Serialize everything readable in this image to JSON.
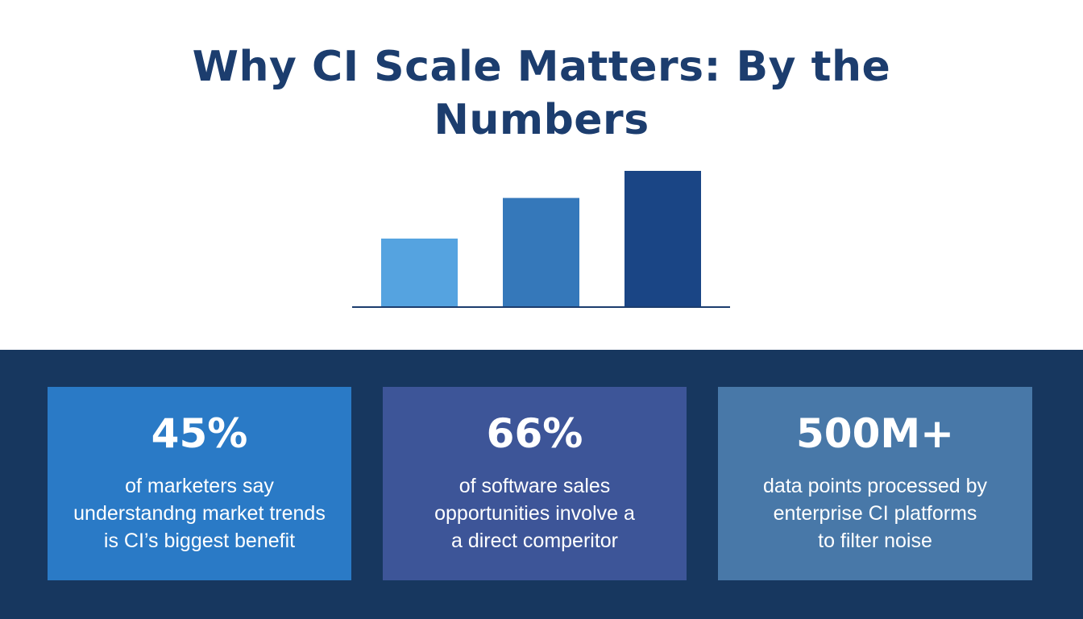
{
  "title": {
    "line1": "Why CI Scale Matters: By the",
    "line2": "Numbers"
  },
  "colors": {
    "title": "#1c3d6e",
    "bottom_band": "#17375f",
    "card_1": "#2a7ac6",
    "card_2": "#3d5598",
    "card_3": "#4878a8",
    "bars": [
      "#55a3e0",
      "#3578ba",
      "#1a4585"
    ],
    "baseline": "#1c3d6e"
  },
  "chart_data": {
    "type": "bar",
    "categories": [
      "",
      "",
      ""
    ],
    "values": [
      1.0,
      1.6,
      2.0
    ],
    "title": "",
    "xlabel": "",
    "ylabel": "",
    "ylim": [
      0,
      2.0
    ],
    "grid": false,
    "legend": "none"
  },
  "stats": [
    {
      "value": "45%",
      "lines": [
        "of marketers say",
        "understandng market trends",
        "is CI’s biggest benefit"
      ]
    },
    {
      "value": "66%",
      "lines": [
        "of software sales",
        "opportunities involve a",
        "a direct comperitor"
      ]
    },
    {
      "value": "500M+",
      "lines": [
        "data points processed by",
        "enterprise CI platforms",
        "to filter noise"
      ]
    }
  ]
}
